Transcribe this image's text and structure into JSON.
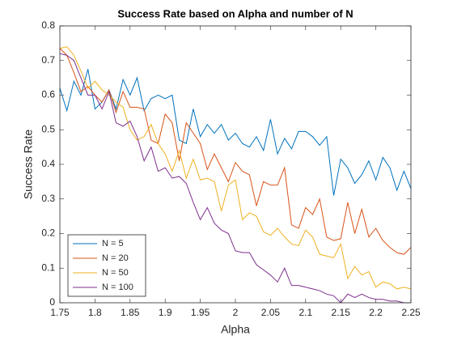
{
  "chart_data": {
    "type": "line",
    "title": "Success Rate based on Alpha and number of N",
    "x_label": "Alpha",
    "y_label": "Success Rate",
    "x": [
      1.75,
      1.76,
      1.77,
      1.78,
      1.79,
      1.8,
      1.81,
      1.82,
      1.83,
      1.84,
      1.85,
      1.86,
      1.87,
      1.88,
      1.89,
      1.9,
      1.91,
      1.92,
      1.93,
      1.94,
      1.95,
      1.96,
      1.97,
      1.98,
      1.99,
      2,
      2.01,
      2.02,
      2.03,
      2.04,
      2.05,
      2.06,
      2.07,
      2.08,
      2.09,
      2.1,
      2.11,
      2.12,
      2.13,
      2.14,
      2.15,
      2.16,
      2.17,
      2.18,
      2.19,
      2.2,
      2.21,
      2.22,
      2.23,
      2.24,
      2.25
    ],
    "series": [
      {
        "name": "N = 5",
        "color": "#0072BD",
        "values": [
          0.62,
          0.555,
          0.64,
          0.6,
          0.675,
          0.56,
          0.58,
          0.615,
          0.56,
          0.645,
          0.6,
          0.65,
          0.555,
          0.59,
          0.6,
          0.59,
          0.6,
          0.47,
          0.46,
          0.56,
          0.48,
          0.515,
          0.49,
          0.515,
          0.47,
          0.49,
          0.46,
          0.45,
          0.48,
          0.44,
          0.53,
          0.43,
          0.475,
          0.445,
          0.495,
          0.495,
          0.48,
          0.455,
          0.48,
          0.31,
          0.415,
          0.39,
          0.345,
          0.37,
          0.41,
          0.355,
          0.42,
          0.39,
          0.325,
          0.38,
          0.33
        ]
      },
      {
        "name": "N = 20",
        "color": "#D95319",
        "values": [
          0.735,
          0.715,
          0.665,
          0.61,
          0.625,
          0.6,
          0.58,
          0.615,
          0.55,
          0.61,
          0.565,
          0.565,
          0.56,
          0.47,
          0.46,
          0.545,
          0.52,
          0.41,
          0.52,
          0.49,
          0.46,
          0.385,
          0.43,
          0.39,
          0.35,
          0.405,
          0.38,
          0.37,
          0.28,
          0.35,
          0.34,
          0.34,
          0.39,
          0.225,
          0.215,
          0.275,
          0.255,
          0.3,
          0.19,
          0.18,
          0.185,
          0.29,
          0.2,
          0.27,
          0.19,
          0.215,
          0.18,
          0.16,
          0.145,
          0.14,
          0.16
        ]
      },
      {
        "name": "N = 50",
        "color": "#EDB120",
        "values": [
          0.735,
          0.74,
          0.715,
          0.67,
          0.62,
          0.64,
          0.615,
          0.6,
          0.58,
          0.565,
          0.5,
          0.47,
          0.48,
          0.515,
          0.46,
          0.43,
          0.38,
          0.44,
          0.36,
          0.415,
          0.355,
          0.36,
          0.35,
          0.265,
          0.34,
          0.355,
          0.24,
          0.26,
          0.25,
          0.205,
          0.195,
          0.215,
          0.19,
          0.17,
          0.165,
          0.21,
          0.19,
          0.14,
          0.135,
          0.13,
          0.17,
          0.07,
          0.105,
          0.08,
          0.09,
          0.045,
          0.06,
          0.055,
          0.04,
          0.045,
          0.04
        ]
      },
      {
        "name": "N = 100",
        "color": "#7E2F8E",
        "values": [
          0.72,
          0.715,
          0.7,
          0.65,
          0.6,
          0.6,
          0.56,
          0.61,
          0.52,
          0.51,
          0.525,
          0.48,
          0.41,
          0.45,
          0.38,
          0.39,
          0.36,
          0.365,
          0.345,
          0.29,
          0.24,
          0.275,
          0.23,
          0.21,
          0.2,
          0.15,
          0.145,
          0.145,
          0.11,
          0.095,
          0.08,
          0.06,
          0.1,
          0.05,
          0.05,
          0.045,
          0.04,
          0.035,
          0.025,
          0.02,
          0,
          0.025,
          0.015,
          0.025,
          0.015,
          0.01,
          0.01,
          0.005,
          0.005,
          0,
          0
        ]
      }
    ],
    "xlim": [
      1.75,
      2.25
    ],
    "xticks": [
      1.75,
      1.8,
      1.85,
      1.9,
      1.95,
      2,
      2.05,
      2.1,
      2.15,
      2.2,
      2.25
    ],
    "ylim": [
      0,
      0.8
    ],
    "yticks": [
      0,
      0.1,
      0.2,
      0.3,
      0.4,
      0.5,
      0.6,
      0.7,
      0.8
    ],
    "legend": "lower left"
  }
}
